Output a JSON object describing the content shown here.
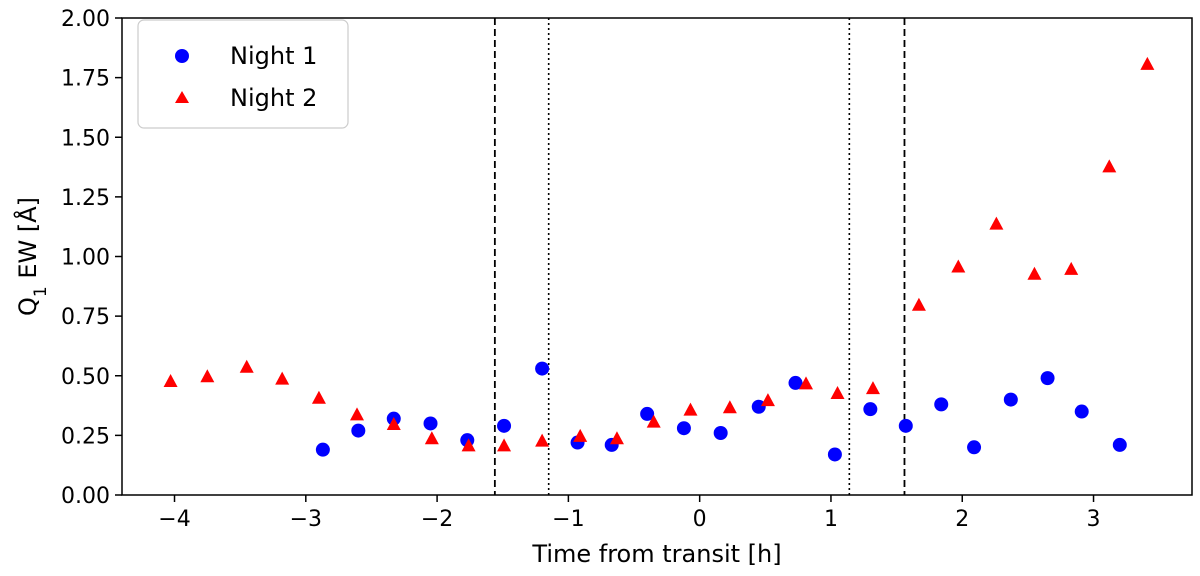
{
  "chart_data": {
    "type": "scatter",
    "xlabel": "Time from transit [h]",
    "ylabel_main": "Q",
    "ylabel_sub": "1",
    "ylabel_rest": " EW [Å]",
    "xlim": [
      -4.4,
      3.75
    ],
    "ylim": [
      0.0,
      2.0
    ],
    "xticks": [
      -4,
      -3,
      -2,
      -1,
      0,
      1,
      2,
      3
    ],
    "xtick_labels": [
      "−4",
      "−3",
      "−2",
      "−1",
      "0",
      "1",
      "2",
      "3"
    ],
    "yticks": [
      0.0,
      0.25,
      0.5,
      0.75,
      1.0,
      1.25,
      1.5,
      1.75,
      2.0
    ],
    "ytick_labels": [
      "0.00",
      "0.25",
      "0.50",
      "0.75",
      "1.00",
      "1.25",
      "1.50",
      "1.75",
      "2.00"
    ],
    "grid": false,
    "legend_position": "top-left",
    "vlines": [
      {
        "x": -1.56,
        "style": "dashed"
      },
      {
        "x": -1.15,
        "style": "dotted"
      },
      {
        "x": 1.14,
        "style": "dotted"
      },
      {
        "x": 1.56,
        "style": "dashed"
      }
    ],
    "series": [
      {
        "name": "Night 1",
        "marker": "circle",
        "color": "#0000ff",
        "x": [
          -2.87,
          -2.6,
          -2.33,
          -2.05,
          -1.77,
          -1.49,
          -1.2,
          -0.93,
          -0.67,
          -0.4,
          -0.12,
          0.16,
          0.45,
          0.73,
          1.03,
          1.3,
          1.57,
          1.84,
          2.09,
          2.37,
          2.65,
          2.91,
          3.2
        ],
        "y": [
          0.19,
          0.27,
          0.32,
          0.3,
          0.23,
          0.29,
          0.53,
          0.22,
          0.21,
          0.34,
          0.28,
          0.26,
          0.37,
          0.47,
          0.17,
          0.36,
          0.29,
          0.38,
          0.2,
          0.4,
          0.49,
          0.35,
          0.21
        ]
      },
      {
        "name": "Night 2",
        "marker": "triangle",
        "color": "#ff0000",
        "x": [
          -4.03,
          -3.75,
          -3.45,
          -3.18,
          -2.9,
          -2.61,
          -2.33,
          -2.04,
          -1.76,
          -1.49,
          -1.2,
          -0.91,
          -0.63,
          -0.35,
          -0.07,
          0.23,
          0.52,
          0.81,
          1.05,
          1.32,
          1.67,
          1.97,
          2.26,
          2.55,
          2.83,
          3.12,
          3.41
        ],
        "y": [
          0.48,
          0.5,
          0.54,
          0.49,
          0.41,
          0.34,
          0.3,
          0.24,
          0.21,
          0.21,
          0.23,
          0.25,
          0.24,
          0.31,
          0.36,
          0.37,
          0.4,
          0.47,
          0.43,
          0.45,
          0.8,
          0.96,
          1.14,
          0.93,
          0.95,
          1.38,
          1.81
        ]
      }
    ]
  }
}
